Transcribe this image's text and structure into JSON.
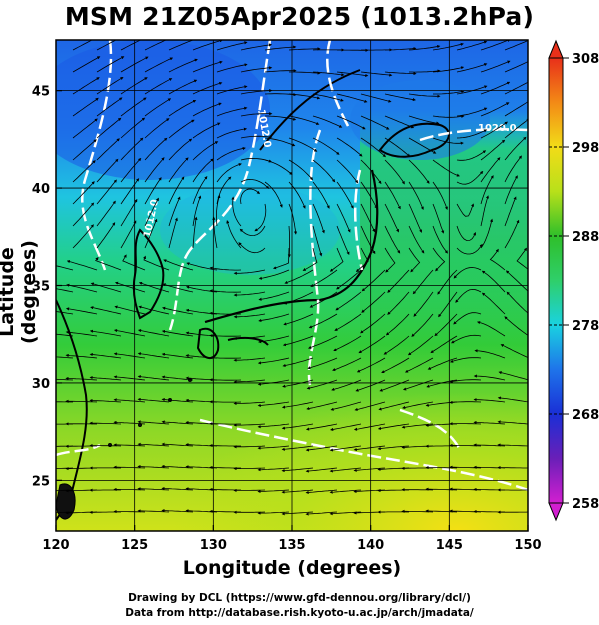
{
  "title": "MSM 21Z05Apr2025 (1013.2hPa)",
  "x_axis": {
    "label": "Longitude (degrees)",
    "ticks": [
      "120",
      "125",
      "130",
      "135",
      "140",
      "145",
      "150"
    ],
    "range": [
      120,
      150
    ]
  },
  "y_axis": {
    "label": "Latitude  (degrees)",
    "ticks": [
      "25",
      "30",
      "35",
      "40",
      "45"
    ],
    "range": [
      22.4,
      47.6
    ]
  },
  "colorbar": {
    "ticks": [
      "258",
      "268",
      "278",
      "288",
      "298",
      "308"
    ],
    "range": [
      258,
      308
    ],
    "colors": [
      "#d21fd0",
      "#6a1fb8",
      "#1a2fd6",
      "#1e74ea",
      "#1ad2e0",
      "#2fcf6a",
      "#2fbf2a",
      "#b8e01a",
      "#f2dc18",
      "#f38a16",
      "#e8301a"
    ]
  },
  "contours": {
    "labels": [
      "1020.0",
      "1012.0",
      "1012.0"
    ],
    "color": "#ffffff"
  },
  "credits": {
    "line1": "Drawing by DCL (https://www.gfd-dennou.org/library/dcl/)",
    "line2": "Data from http://database.rish.kyoto-u.ac.jp/arch/jmadata/"
  },
  "colors": {
    "land": "#101010",
    "streamline": "#000000",
    "frame": "#000000"
  }
}
